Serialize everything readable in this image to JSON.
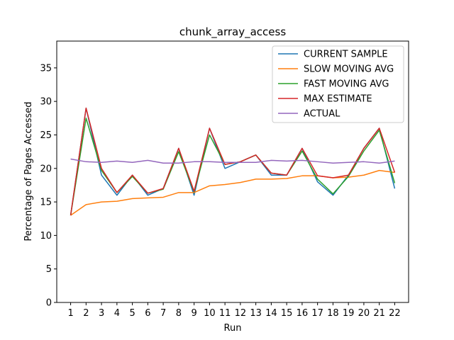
{
  "chart_data": {
    "type": "line",
    "title": "chunk_array_access",
    "xlabel": "Run",
    "ylabel": "Percentage of Pages Accessed",
    "xlim": [
      0.1,
      22.9
    ],
    "ylim": [
      0,
      39
    ],
    "x": [
      1,
      2,
      3,
      4,
      5,
      6,
      7,
      8,
      9,
      10,
      11,
      12,
      13,
      14,
      15,
      16,
      17,
      18,
      19,
      20,
      21,
      22
    ],
    "x_ticks": [
      1,
      2,
      3,
      4,
      5,
      6,
      7,
      8,
      9,
      10,
      11,
      12,
      13,
      14,
      15,
      16,
      17,
      18,
      19,
      20,
      21,
      22
    ],
    "y_ticks": [
      0,
      5,
      10,
      15,
      20,
      25,
      30,
      35
    ],
    "grid": false,
    "legend_position": "top-right",
    "series": [
      {
        "name": "CURRENT SAMPLE",
        "color": "#1f77b4",
        "values": [
          13,
          29,
          19,
          16,
          19,
          16,
          17,
          23,
          16,
          26,
          20,
          21,
          22,
          19,
          19,
          23,
          18,
          16,
          19,
          23,
          26,
          17
        ]
      },
      {
        "name": "SLOW MOVING AVG",
        "color": "#ff7f0e",
        "values": [
          13,
          14.6,
          15.0,
          15.1,
          15.5,
          15.6,
          15.7,
          16.4,
          16.4,
          17.4,
          17.6,
          17.9,
          18.4,
          18.4,
          18.5,
          18.9,
          18.9,
          18.6,
          18.7,
          19.0,
          19.7,
          19.4
        ]
      },
      {
        "name": "FAST MOVING AVG",
        "color": "#2ca02c",
        "values": [
          13,
          27.5,
          19.7,
          16.4,
          18.8,
          16.3,
          16.9,
          22.5,
          16.5,
          25.0,
          20.6,
          21.0,
          22.0,
          19.3,
          19.0,
          22.6,
          18.4,
          16.2,
          18.8,
          22.6,
          25.7,
          17.8
        ]
      },
      {
        "name": "MAX ESTIMATE",
        "color": "#d62728",
        "values": [
          13,
          29,
          20,
          16.4,
          19,
          16.3,
          17,
          23,
          16.6,
          26,
          20.6,
          21,
          22,
          19.3,
          19,
          23,
          18.9,
          18.6,
          19,
          23,
          26,
          19.4
        ]
      },
      {
        "name": "ACTUAL",
        "color": "#9467bd",
        "values": [
          21.4,
          21.0,
          20.9,
          21.1,
          20.9,
          21.2,
          20.8,
          20.8,
          21.0,
          21.0,
          20.9,
          20.9,
          20.9,
          21.2,
          21.1,
          21.2,
          21.0,
          20.8,
          20.9,
          21.0,
          20.8,
          21.1
        ]
      }
    ]
  }
}
